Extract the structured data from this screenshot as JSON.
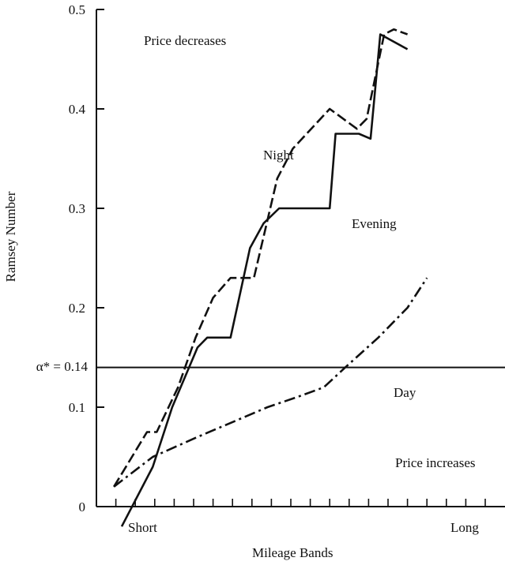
{
  "chart_data": {
    "type": "line",
    "title": "",
    "xlabel": "Mileage Bands",
    "ylabel": "Ramsey Number",
    "x_tick_labels": {
      "start": "Short",
      "end": "Long"
    },
    "x_categories": [
      "1",
      "2",
      "3",
      "4",
      "5",
      "6",
      "7",
      "8",
      "9",
      "10",
      "11",
      "12",
      "13",
      "14",
      "15",
      "16",
      "17",
      "18",
      "19",
      "20"
    ],
    "ylim": [
      0,
      0.5
    ],
    "y_ticks": [
      {
        "value": 0,
        "label": "0"
      },
      {
        "value": 0.1,
        "label": "0.1"
      },
      {
        "value": 0.2,
        "label": "0.2"
      },
      {
        "value": 0.3,
        "label": "0.3"
      },
      {
        "value": 0.4,
        "label": "0.4"
      },
      {
        "value": 0.5,
        "label": "0.5"
      }
    ],
    "reference_line": {
      "value": 0.14,
      "label": "α* = 0.14"
    },
    "annotations": {
      "top": "Price decreases",
      "bottom": "Price increases"
    },
    "series": [
      {
        "name": "Night",
        "style": "dashed",
        "points": [
          [
            0.9,
            0.02
          ],
          [
            2.6,
            0.075
          ],
          [
            3.1,
            0.075
          ],
          [
            4.2,
            0.12
          ],
          [
            5.1,
            0.17
          ],
          [
            6,
            0.21
          ],
          [
            6.9,
            0.23
          ],
          [
            8.1,
            0.23
          ],
          [
            9.3,
            0.33
          ],
          [
            10.1,
            0.36
          ],
          [
            12,
            0.4
          ],
          [
            13.4,
            0.38
          ],
          [
            13.9,
            0.39
          ],
          [
            14.8,
            0.475
          ],
          [
            15.3,
            0.48
          ],
          [
            16,
            0.475
          ]
        ]
      },
      {
        "name": "Evening",
        "style": "solid",
        "points": [
          [
            1.3,
            -0.02
          ],
          [
            2.9,
            0.04
          ],
          [
            3.9,
            0.1
          ],
          [
            5.2,
            0.16
          ],
          [
            5.7,
            0.17
          ],
          [
            6.9,
            0.17
          ],
          [
            7.9,
            0.26
          ],
          [
            8.6,
            0.285
          ],
          [
            9.4,
            0.3
          ],
          [
            10.7,
            0.3
          ],
          [
            12,
            0.3
          ],
          [
            12.3,
            0.375
          ],
          [
            13.5,
            0.375
          ],
          [
            14.1,
            0.37
          ],
          [
            14.6,
            0.475
          ],
          [
            16,
            0.46
          ]
        ]
      },
      {
        "name": "Day",
        "style": "dashdot",
        "points": [
          [
            0.9,
            0.02
          ],
          [
            2.9,
            0.05
          ],
          [
            5.2,
            0.07
          ],
          [
            7,
            0.085
          ],
          [
            8.8,
            0.1
          ],
          [
            10.3,
            0.11
          ],
          [
            11.7,
            0.12
          ],
          [
            12.8,
            0.14
          ],
          [
            14.5,
            0.17
          ],
          [
            16,
            0.2
          ],
          [
            17,
            0.23
          ]
        ]
      }
    ]
  }
}
